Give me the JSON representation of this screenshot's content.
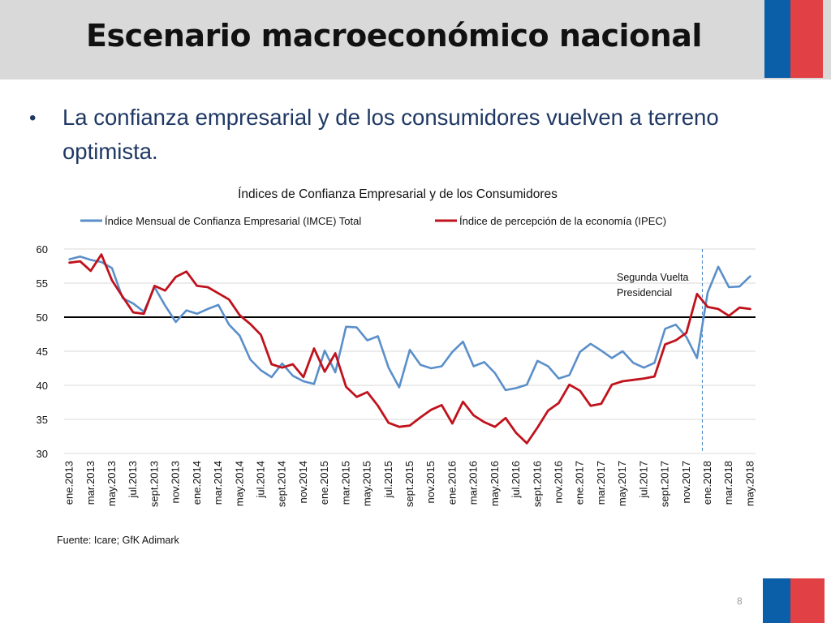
{
  "slide": {
    "title": "Escenario macroeconómico nacional",
    "bullet": "La confianza empresarial y de los consumidores vuelven a terreno optimista.",
    "source": "Fuente: Icare; GfK Adimark",
    "page_number": "8"
  },
  "colors": {
    "header_bg": "#d9d9d9",
    "flag_blue": "#0a5fa8",
    "flag_red": "#e14145",
    "text_dark_blue": "#1f3864",
    "imce": "#5b8fc9",
    "ipec": "#c0121c"
  },
  "chart_data": {
    "type": "line",
    "title": "Índices de Confianza Empresarial y de los Consumidores",
    "xlabel": "",
    "ylabel": "",
    "ylim": [
      30,
      60
    ],
    "yticks": [
      30,
      35,
      40,
      45,
      50,
      55,
      60
    ],
    "grid": true,
    "legend_position": "top",
    "reference_line": 50,
    "x_tick_labels": [
      "ene.2013",
      "mar.2013",
      "may.2013",
      "jul.2013",
      "sept.2013",
      "nov.2013",
      "ene.2014",
      "mar.2014",
      "may.2014",
      "jul.2014",
      "sept.2014",
      "nov.2014",
      "ene.2015",
      "mar.2015",
      "may.2015",
      "jul.2015",
      "sept.2015",
      "nov.2015",
      "ene.2016",
      "mar.2016",
      "may.2016",
      "jul.2016",
      "sept.2016",
      "nov.2016",
      "ene.2017",
      "mar.2017",
      "may.2017",
      "jul.2017",
      "sept.2017",
      "nov.2017",
      "ene.2018",
      "mar.2018",
      "may.2018"
    ],
    "annotation": {
      "text_line1": "Segunda Vuelta",
      "text_line2": "Presidencial",
      "at_label": "dic.2017"
    },
    "months": [
      "ene.2013",
      "feb.2013",
      "mar.2013",
      "abr.2013",
      "may.2013",
      "jun.2013",
      "jul.2013",
      "ago.2013",
      "sept.2013",
      "oct.2013",
      "nov.2013",
      "dic.2013",
      "ene.2014",
      "feb.2014",
      "mar.2014",
      "abr.2014",
      "may.2014",
      "jun.2014",
      "jul.2014",
      "ago.2014",
      "sept.2014",
      "oct.2014",
      "nov.2014",
      "dic.2014",
      "ene.2015",
      "feb.2015",
      "mar.2015",
      "abr.2015",
      "may.2015",
      "jun.2015",
      "jul.2015",
      "ago.2015",
      "sept.2015",
      "oct.2015",
      "nov.2015",
      "dic.2015",
      "ene.2016",
      "feb.2016",
      "mar.2016",
      "abr.2016",
      "may.2016",
      "jun.2016",
      "jul.2016",
      "ago.2016",
      "sept.2016",
      "oct.2016",
      "nov.2016",
      "dic.2016",
      "ene.2017",
      "feb.2017",
      "mar.2017",
      "abr.2017",
      "may.2017",
      "jun.2017",
      "jul.2017",
      "ago.2017",
      "sept.2017",
      "oct.2017",
      "nov.2017",
      "dic.2017",
      "ene.2018",
      "feb.2018",
      "mar.2018",
      "abr.2018",
      "may.2018"
    ],
    "series": [
      {
        "name": "Índice Mensual de Confianza Empresarial (IMCE) Total",
        "color": "#5b8fc9",
        "values": [
          58.5,
          58.9,
          58.4,
          58.1,
          57.2,
          52.8,
          52.0,
          50.8,
          54.4,
          51.7,
          49.3,
          51.0,
          50.5,
          51.2,
          51.8,
          48.9,
          47.3,
          43.8,
          42.2,
          41.2,
          43.2,
          41.4,
          40.6,
          40.2,
          45.1,
          41.9,
          48.6,
          48.5,
          46.6,
          47.2,
          42.6,
          39.7,
          45.2,
          43.0,
          42.5,
          42.8,
          44.9,
          46.4,
          42.8,
          43.4,
          41.8,
          39.3,
          39.6,
          40.1,
          43.6,
          42.8,
          41.0,
          41.5,
          44.9,
          46.1,
          45.1,
          44.0,
          45.0,
          43.3,
          42.6,
          43.3,
          48.3,
          48.9,
          47.1,
          44.0,
          53.6,
          57.4,
          54.4,
          54.5,
          56.0
        ]
      },
      {
        "name": "Índice de percepción de la economía (IPEC)",
        "color": "#c0121c",
        "values": [
          58.0,
          58.2,
          56.8,
          59.2,
          55.4,
          53.0,
          50.7,
          50.5,
          54.6,
          53.9,
          55.9,
          56.7,
          54.6,
          54.4,
          53.5,
          52.6,
          50.3,
          49.0,
          47.4,
          43.1,
          42.6,
          43.1,
          41.2,
          45.4,
          42.0,
          44.7,
          39.8,
          38.3,
          39.0,
          37.0,
          34.5,
          33.9,
          34.1,
          35.3,
          36.4,
          37.1,
          34.4,
          37.6,
          35.6,
          34.6,
          33.9,
          35.2,
          33.0,
          31.5,
          33.8,
          36.3,
          37.4,
          40.1,
          39.2,
          37.0,
          37.3,
          40.1,
          40.6,
          40.8,
          41.0,
          41.3,
          46.0,
          46.6,
          47.7,
          53.4,
          51.5,
          51.2,
          50.2,
          51.4,
          51.2
        ]
      }
    ]
  }
}
